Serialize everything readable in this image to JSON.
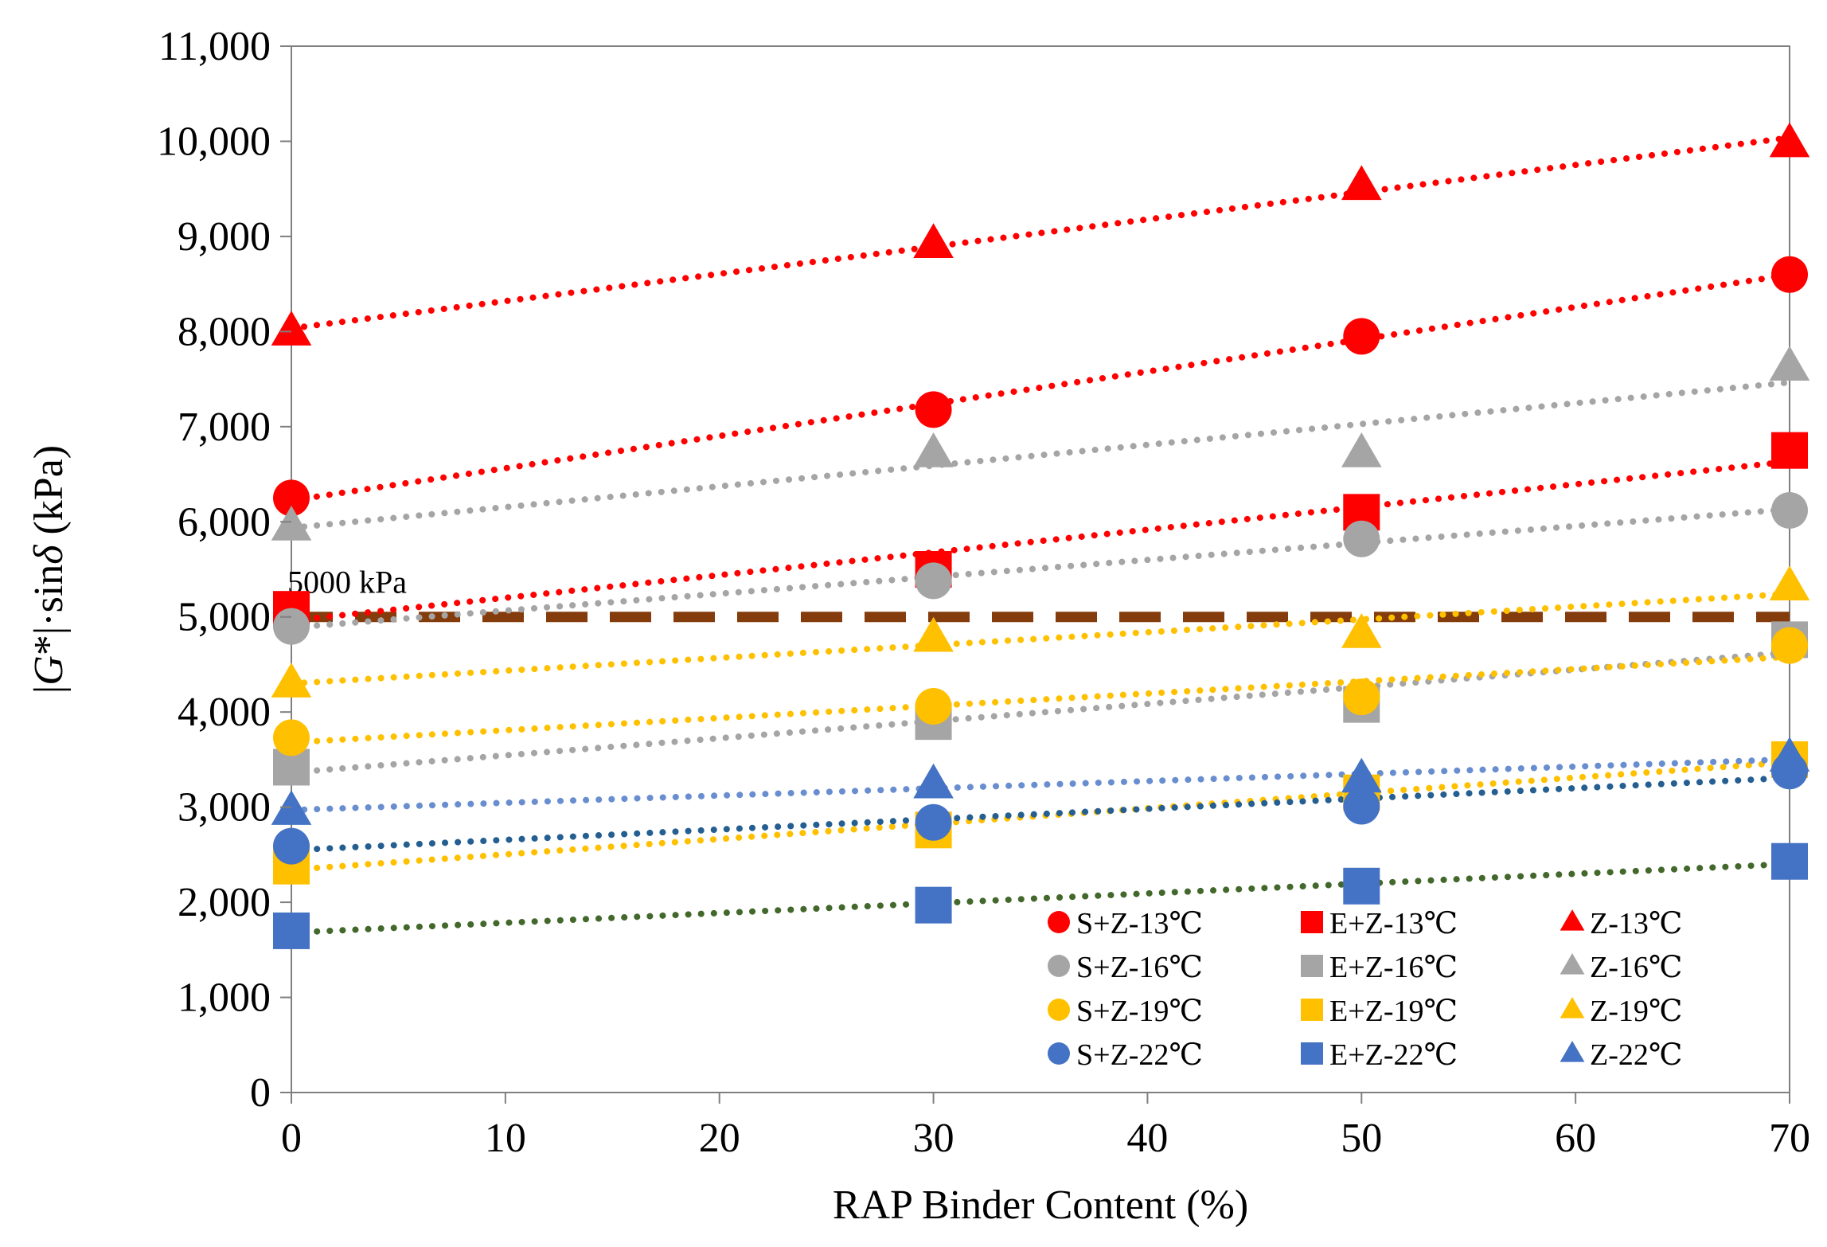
{
  "chart_data": {
    "type": "scatter",
    "title": "",
    "xlabel": "RAP Binder Content (%)",
    "ylabel_parts": [
      "|",
      "G",
      "*|·sin",
      "δ",
      " (kPa)"
    ],
    "xlim": [
      0,
      70
    ],
    "ylim": [
      0,
      11000
    ],
    "x_ticks": [
      0,
      10,
      20,
      30,
      40,
      50,
      60,
      70
    ],
    "x_tick_labels": [
      "0",
      "10",
      "20",
      "30",
      "40",
      "50",
      "60",
      "70"
    ],
    "y_ticks": [
      0,
      1000,
      2000,
      3000,
      4000,
      5000,
      6000,
      7000,
      8000,
      9000,
      10000,
      11000
    ],
    "y_tick_labels": [
      "0",
      "1,000",
      "2,000",
      "3,000",
      "4,000",
      "5,000",
      "6,000",
      "7,000",
      "8,000",
      "9,000",
      "10,000",
      "11,000"
    ],
    "grid": false,
    "legend_position": "bottom-right",
    "reference_line": {
      "y": 5000,
      "label": "5000 kPa",
      "color": "#843C0C"
    },
    "series": [
      {
        "name": "S+Z-13℃",
        "marker": "circle",
        "color": "#FF0000",
        "trend_color": "#FF0000",
        "x": [
          0,
          30,
          50,
          70
        ],
        "values": [
          6250,
          7180,
          7950,
          8600
        ]
      },
      {
        "name": "E+Z-13℃",
        "marker": "square",
        "color": "#FF0000",
        "trend_color": "#FF0000",
        "x": [
          0,
          30,
          50,
          70
        ],
        "values": [
          5080,
          5500,
          6100,
          6750
        ]
      },
      {
        "name": "Z-13℃",
        "marker": "triangle",
        "color": "#FF0000",
        "trend_color": "#FF0000",
        "x": [
          0,
          30,
          50,
          70
        ],
        "values": [
          8000,
          8920,
          9530,
          9980
        ]
      },
      {
        "name": "S+Z-16℃",
        "marker": "circle",
        "color": "#A5A5A5",
        "trend_color": "#A5A5A5",
        "x": [
          0,
          30,
          50,
          70
        ],
        "values": [
          4900,
          5380,
          5820,
          6120
        ]
      },
      {
        "name": "E+Z-16℃",
        "marker": "square",
        "color": "#A5A5A5",
        "trend_color": "#A5A5A5",
        "x": [
          0,
          30,
          50,
          70
        ],
        "values": [
          3420,
          3900,
          4080,
          4760
        ]
      },
      {
        "name": "Z-16℃",
        "marker": "triangle",
        "color": "#A5A5A5",
        "trend_color": "#A5A5A5",
        "x": [
          0,
          30,
          50,
          70
        ],
        "values": [
          5950,
          6720,
          6720,
          7630
        ]
      },
      {
        "name": "S+Z-19℃",
        "marker": "circle",
        "color": "#FFC000",
        "trend_color": "#FFC000",
        "x": [
          0,
          30,
          50,
          70
        ],
        "values": [
          3730,
          4060,
          4160,
          4700
        ]
      },
      {
        "name": "E+Z-19℃",
        "marker": "square",
        "color": "#FFC000",
        "trend_color": "#FFC000",
        "x": [
          0,
          30,
          50,
          70
        ],
        "values": [
          2380,
          2760,
          3150,
          3500
        ]
      },
      {
        "name": "Z-19℃",
        "marker": "triangle",
        "color": "#FFC000",
        "trend_color": "#FFC000",
        "x": [
          0,
          30,
          50,
          70
        ],
        "values": [
          4300,
          4780,
          4820,
          5320
        ]
      },
      {
        "name": "S+Z-22℃",
        "marker": "circle",
        "color": "#4472C4",
        "trend_color": "#255E91",
        "x": [
          0,
          30,
          50,
          70
        ],
        "values": [
          2590,
          2840,
          3010,
          3380
        ]
      },
      {
        "name": "E+Z-22℃",
        "marker": "square",
        "color": "#4472C4",
        "trend_color": "#43682B",
        "x": [
          0,
          30,
          50,
          70
        ],
        "values": [
          1700,
          1970,
          2170,
          2430
        ]
      },
      {
        "name": "Z-22℃",
        "marker": "triangle",
        "color": "#4472C4",
        "trend_color": "#698ED0",
        "x": [
          0,
          30,
          50,
          70
        ],
        "values": [
          2960,
          3240,
          3300,
          3520
        ]
      }
    ]
  }
}
